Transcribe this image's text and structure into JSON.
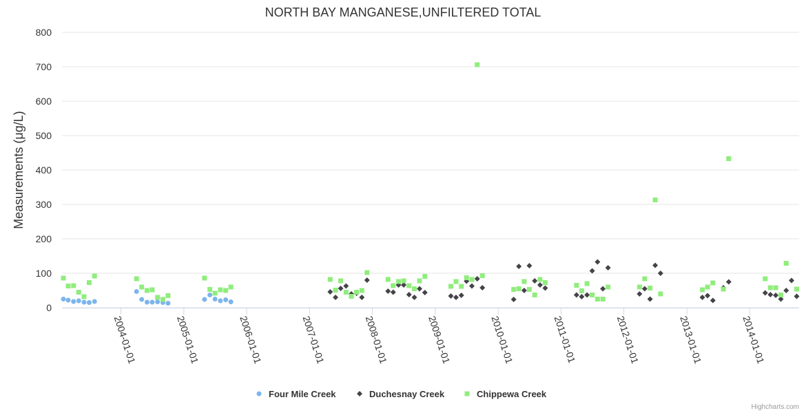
{
  "chart_data": {
    "type": "scatter",
    "title": "NORTH BAY MANGANESE,UNFILTERED TOTAL",
    "ylabel": "Measurements (μg/L)",
    "xlabel": "",
    "ylim": [
      0,
      800
    ],
    "yticks": [
      0,
      100,
      200,
      300,
      400,
      500,
      600,
      700,
      800
    ],
    "xlim": [
      "2003-01-24",
      "2014-10-15"
    ],
    "xticks": [
      "2004-01-01",
      "2005-01-01",
      "2006-01-01",
      "2007-01-01",
      "2008-01-01",
      "2009-01-01",
      "2010-01-01",
      "2011-01-01",
      "2012-01-01",
      "2013-01-01",
      "2014-01-01"
    ],
    "grid": true,
    "legend_position": "bottom-center",
    "series": [
      {
        "name": "Four Mile Creek",
        "marker": "circle",
        "color": "#7cb5ec",
        "points": [
          [
            "2003-02-01",
            25
          ],
          [
            "2003-03-01",
            22
          ],
          [
            "2003-04-01",
            18
          ],
          [
            "2003-05-01",
            20
          ],
          [
            "2003-06-01",
            16
          ],
          [
            "2003-07-01",
            15
          ],
          [
            "2003-08-01",
            18
          ],
          [
            "2004-04-01",
            47
          ],
          [
            "2004-05-01",
            24
          ],
          [
            "2004-06-01",
            16
          ],
          [
            "2004-07-01",
            16
          ],
          [
            "2004-08-01",
            17
          ],
          [
            "2004-09-01",
            15
          ],
          [
            "2004-10-01",
            13
          ],
          [
            "2005-05-01",
            24
          ],
          [
            "2005-06-01",
            37
          ],
          [
            "2005-07-01",
            25
          ],
          [
            "2005-08-01",
            20
          ],
          [
            "2005-09-01",
            23
          ],
          [
            "2005-10-01",
            17
          ]
        ]
      },
      {
        "name": "Duchesnay Creek",
        "marker": "diamond",
        "color": "#434348",
        "points": [
          [
            "2007-05-01",
            46
          ],
          [
            "2007-06-01",
            30
          ],
          [
            "2007-07-01",
            56
          ],
          [
            "2007-08-01",
            63
          ],
          [
            "2007-09-01",
            40
          ],
          [
            "2007-10-01",
            42
          ],
          [
            "2007-11-01",
            30
          ],
          [
            "2007-12-01",
            80
          ],
          [
            "2008-04-01",
            48
          ],
          [
            "2008-05-01",
            45
          ],
          [
            "2008-06-01",
            66
          ],
          [
            "2008-07-01",
            66
          ],
          [
            "2008-08-01",
            38
          ],
          [
            "2008-09-01",
            30
          ],
          [
            "2008-10-01",
            55
          ],
          [
            "2008-11-01",
            44
          ],
          [
            "2009-04-01",
            34
          ],
          [
            "2009-05-01",
            30
          ],
          [
            "2009-06-01",
            36
          ],
          [
            "2009-07-01",
            77
          ],
          [
            "2009-08-01",
            63
          ],
          [
            "2009-09-01",
            84
          ],
          [
            "2009-10-01",
            58
          ],
          [
            "2010-04-01",
            24
          ],
          [
            "2010-05-01",
            120
          ],
          [
            "2010-06-01",
            50
          ],
          [
            "2010-07-01",
            122
          ],
          [
            "2010-08-01",
            78
          ],
          [
            "2010-09-01",
            66
          ],
          [
            "2010-10-01",
            57
          ],
          [
            "2011-04-01",
            37
          ],
          [
            "2011-05-01",
            32
          ],
          [
            "2011-06-01",
            37
          ],
          [
            "2011-07-01",
            107
          ],
          [
            "2011-08-01",
            133
          ],
          [
            "2011-09-01",
            55
          ],
          [
            "2011-10-01",
            116
          ],
          [
            "2012-04-01",
            40
          ],
          [
            "2012-05-01",
            55
          ],
          [
            "2012-06-01",
            25
          ],
          [
            "2012-07-01",
            123
          ],
          [
            "2012-08-01",
            100
          ],
          [
            "2013-04-01",
            30
          ],
          [
            "2013-05-01",
            35
          ],
          [
            "2013-06-01",
            21
          ],
          [
            "2013-08-01",
            58
          ],
          [
            "2013-09-01",
            75
          ],
          [
            "2014-04-01",
            43
          ],
          [
            "2014-05-01",
            38
          ],
          [
            "2014-06-01",
            36
          ],
          [
            "2014-07-01",
            25
          ],
          [
            "2014-08-01",
            50
          ],
          [
            "2014-09-01",
            79
          ],
          [
            "2014-10-01",
            33
          ]
        ]
      },
      {
        "name": "Chippewa Creek",
        "marker": "square",
        "color": "#90ed7d",
        "points": [
          [
            "2003-02-01",
            86
          ],
          [
            "2003-03-01",
            63
          ],
          [
            "2003-04-01",
            64
          ],
          [
            "2003-05-01",
            45
          ],
          [
            "2003-06-01",
            32
          ],
          [
            "2003-07-01",
            73
          ],
          [
            "2003-08-01",
            92
          ],
          [
            "2004-04-01",
            84
          ],
          [
            "2004-05-01",
            60
          ],
          [
            "2004-06-01",
            50
          ],
          [
            "2004-07-01",
            52
          ],
          [
            "2004-08-01",
            30
          ],
          [
            "2004-09-01",
            24
          ],
          [
            "2004-10-01",
            35
          ],
          [
            "2005-05-01",
            86
          ],
          [
            "2005-06-01",
            53
          ],
          [
            "2005-07-01",
            42
          ],
          [
            "2005-08-01",
            52
          ],
          [
            "2005-09-01",
            50
          ],
          [
            "2005-10-01",
            60
          ],
          [
            "2007-05-01",
            82
          ],
          [
            "2007-06-01",
            51
          ],
          [
            "2007-07-01",
            78
          ],
          [
            "2007-08-01",
            45
          ],
          [
            "2007-09-01",
            33
          ],
          [
            "2007-10-01",
            45
          ],
          [
            "2007-11-01",
            50
          ],
          [
            "2007-12-01",
            102
          ],
          [
            "2008-04-01",
            82
          ],
          [
            "2008-05-01",
            64
          ],
          [
            "2008-06-01",
            76
          ],
          [
            "2008-07-01",
            78
          ],
          [
            "2008-08-01",
            64
          ],
          [
            "2008-09-01",
            55
          ],
          [
            "2008-10-01",
            78
          ],
          [
            "2008-11-01",
            91
          ],
          [
            "2009-04-01",
            62
          ],
          [
            "2009-05-01",
            76
          ],
          [
            "2009-06-01",
            62
          ],
          [
            "2009-07-01",
            87
          ],
          [
            "2009-08-01",
            82
          ],
          [
            "2009-09-01",
            706
          ],
          [
            "2009-10-01",
            93
          ],
          [
            "2010-04-01",
            53
          ],
          [
            "2010-05-01",
            55
          ],
          [
            "2010-06-01",
            76
          ],
          [
            "2010-07-01",
            53
          ],
          [
            "2010-08-01",
            37
          ],
          [
            "2010-09-01",
            82
          ],
          [
            "2010-10-01",
            73
          ],
          [
            "2011-04-01",
            65
          ],
          [
            "2011-05-01",
            49
          ],
          [
            "2011-06-01",
            70
          ],
          [
            "2011-07-01",
            37
          ],
          [
            "2011-08-01",
            25
          ],
          [
            "2011-09-01",
            25
          ],
          [
            "2011-10-01",
            60
          ],
          [
            "2012-04-01",
            60
          ],
          [
            "2012-05-01",
            84
          ],
          [
            "2012-06-01",
            57
          ],
          [
            "2012-07-01",
            313
          ],
          [
            "2012-08-01",
            40
          ],
          [
            "2013-04-01",
            52
          ],
          [
            "2013-05-01",
            60
          ],
          [
            "2013-06-01",
            72
          ],
          [
            "2013-08-01",
            54
          ],
          [
            "2013-09-01",
            433
          ],
          [
            "2014-04-01",
            84
          ],
          [
            "2014-05-01",
            58
          ],
          [
            "2014-06-01",
            58
          ],
          [
            "2014-07-01",
            37
          ],
          [
            "2014-08-01",
            129
          ],
          [
            "2014-10-01",
            54
          ]
        ]
      }
    ]
  },
  "credits": "Highcharts.com"
}
